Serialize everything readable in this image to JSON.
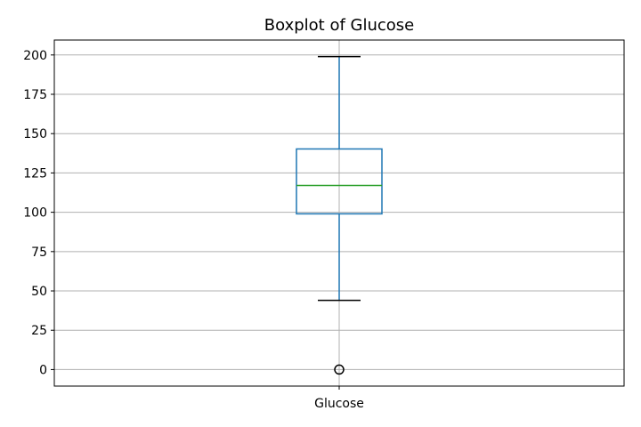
{
  "chart_data": {
    "type": "boxplot",
    "title": "Boxplot of Glucose",
    "xlabel": "",
    "ylabel": "",
    "categories": [
      "Glucose"
    ],
    "boxes": [
      {
        "name": "Glucose",
        "whisker_low": 44,
        "q1": 99,
        "median": 117,
        "q3": 140.25,
        "whisker_high": 199,
        "outliers": [
          0
        ]
      }
    ],
    "yticks": [
      0,
      25,
      50,
      75,
      100,
      125,
      150,
      175,
      200
    ],
    "ylim": [
      -10.5,
      209.5
    ],
    "grid": true,
    "colors": {
      "box": "#1f77b4",
      "median": "#2ca02c",
      "whisker": "#1f77b4",
      "cap": "#000000",
      "grid": "#b0b0b0",
      "outlier": "#000000"
    }
  }
}
